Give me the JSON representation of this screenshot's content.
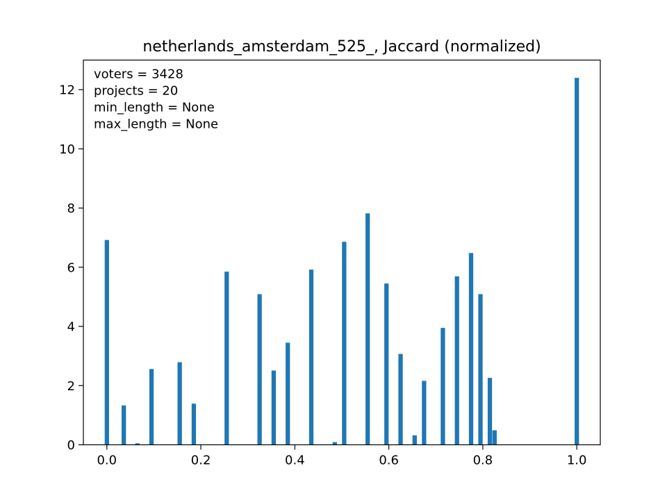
{
  "chart_data": {
    "type": "bar",
    "title": "netherlands_amsterdam_525_, Jaccard (normalized)",
    "xlabel": "",
    "ylabel": "",
    "xlim": [
      -0.05,
      1.05
    ],
    "ylim": [
      0,
      13
    ],
    "x_ticks": [
      0.0,
      0.2,
      0.4,
      0.6,
      0.8,
      1.0
    ],
    "x_tick_labels": [
      "0.0",
      "0.2",
      "0.4",
      "0.6",
      "0.8",
      "1.0"
    ],
    "y_ticks": [
      0,
      2,
      4,
      6,
      8,
      10,
      12
    ],
    "y_tick_labels": [
      "0",
      "2",
      "4",
      "6",
      "8",
      "10",
      "12"
    ],
    "bin_width": 0.01,
    "color": "#1f77b4",
    "grid": false,
    "annotations": [
      "voters = 3428",
      "projects = 20",
      "min_length = None",
      "max_length = None"
    ],
    "bins": [
      {
        "x": 0.0,
        "value": 6.92
      },
      {
        "x": 0.036,
        "value": 1.33
      },
      {
        "x": 0.065,
        "value": 0.05
      },
      {
        "x": 0.095,
        "value": 2.56
      },
      {
        "x": 0.155,
        "value": 2.79
      },
      {
        "x": 0.185,
        "value": 1.39
      },
      {
        "x": 0.255,
        "value": 5.85
      },
      {
        "x": 0.325,
        "value": 5.09
      },
      {
        "x": 0.355,
        "value": 2.51
      },
      {
        "x": 0.385,
        "value": 3.45
      },
      {
        "x": 0.435,
        "value": 5.92
      },
      {
        "x": 0.485,
        "value": 0.09
      },
      {
        "x": 0.505,
        "value": 6.86
      },
      {
        "x": 0.555,
        "value": 7.82
      },
      {
        "x": 0.595,
        "value": 5.45
      },
      {
        "x": 0.625,
        "value": 3.07
      },
      {
        "x": 0.655,
        "value": 0.32
      },
      {
        "x": 0.675,
        "value": 2.16
      },
      {
        "x": 0.715,
        "value": 3.95
      },
      {
        "x": 0.745,
        "value": 5.69
      },
      {
        "x": 0.775,
        "value": 6.48
      },
      {
        "x": 0.795,
        "value": 5.09
      },
      {
        "x": 0.815,
        "value": 2.26
      },
      {
        "x": 0.825,
        "value": 0.49
      },
      {
        "x": 1.0,
        "value": 12.4
      }
    ]
  }
}
